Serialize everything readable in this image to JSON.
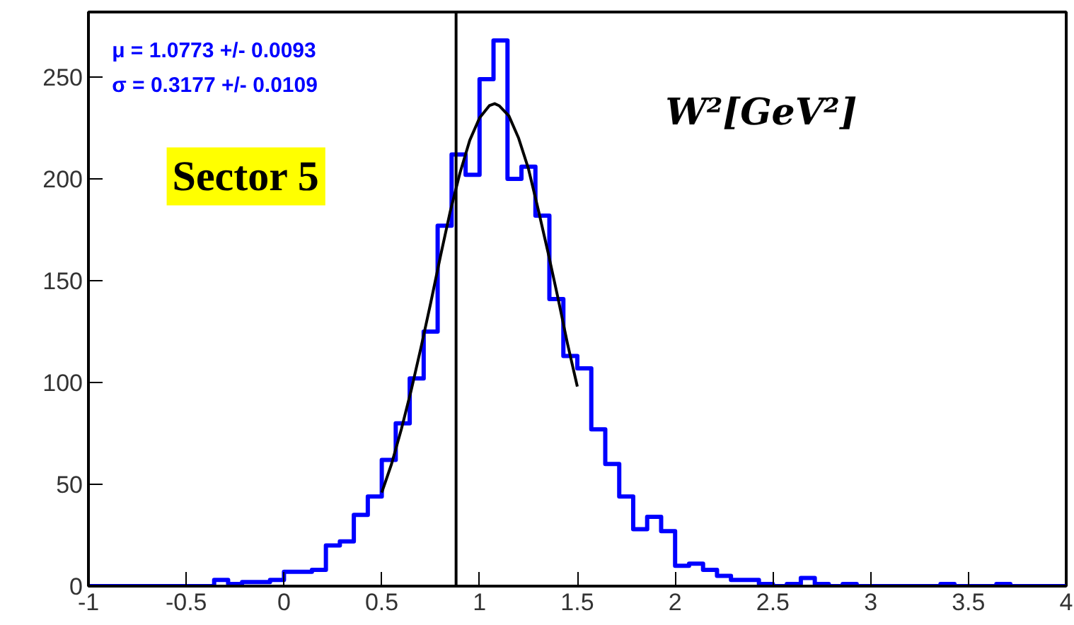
{
  "chart_data": {
    "type": "histogram",
    "annotations": [
      "μ = 1.0773 +/- 0.0093",
      "σ = 0.3177 +/- 0.0109",
      "Sector 5",
      "W²[GeV²]"
    ],
    "xlim": [
      -1,
      4
    ],
    "ylim": [
      0,
      282
    ],
    "xticks": [
      -1,
      -0.5,
      0,
      0.5,
      1,
      1.5,
      2,
      2.5,
      3,
      3.5,
      4
    ],
    "yticks": [
      0,
      50,
      100,
      150,
      200,
      250
    ],
    "grid": false,
    "ref_lines": [
      {
        "axis": "x",
        "value": 0.88,
        "color": "#000000"
      }
    ],
    "series": [
      {
        "color": "#0000ff",
        "bins": [
          -1,
          -0.9286,
          -0.8571,
          -0.7857,
          -0.7143,
          -0.6429,
          -0.5714,
          -0.5,
          -0.4286,
          -0.3571,
          -0.2857,
          -0.2143,
          -0.1429,
          -0.0714,
          0,
          0.0714,
          0.1429,
          0.2143,
          0.2857,
          0.3571,
          0.4286,
          0.5,
          0.5714,
          0.6429,
          0.7143,
          0.7857,
          0.8571,
          0.9286,
          1,
          1.0714,
          1.1429,
          1.2143,
          1.2857,
          1.3571,
          1.4286,
          1.5,
          1.5714,
          1.6429,
          1.7143,
          1.7857,
          1.8571,
          1.9286,
          2,
          2.0714,
          2.1429,
          2.2143,
          2.2857,
          2.3571,
          2.4286,
          2.5,
          2.5714,
          2.6429,
          2.7143,
          2.7857,
          2.8571,
          2.9286,
          3,
          3.0714,
          3.1429,
          3.2143,
          3.2857,
          3.3571,
          3.4286,
          3.5,
          3.5714,
          3.6429,
          3.7143,
          3.7857,
          3.8571,
          3.9286,
          4
        ],
        "values": [
          0,
          0,
          0,
          0,
          0,
          0,
          0,
          0,
          0,
          3,
          1,
          2,
          2,
          3,
          7,
          7,
          8,
          20,
          22,
          35,
          44,
          62,
          80,
          102,
          125,
          177,
          212,
          202,
          249,
          268,
          200,
          206,
          182,
          141,
          113,
          107,
          77,
          60,
          44,
          28,
          34,
          27,
          10,
          11,
          8,
          5,
          3,
          3,
          1,
          0,
          1,
          4,
          1,
          0,
          1,
          0,
          0,
          0,
          0,
          0,
          0,
          1,
          0,
          0,
          0,
          1,
          0,
          0,
          0,
          0
        ]
      },
      {
        "type": "line",
        "color": "#000000",
        "x": [
          0.5,
          0.55,
          0.6,
          0.65,
          0.7,
          0.75,
          0.8,
          0.85,
          0.9,
          0.95,
          1.0,
          1.05,
          1.0773,
          1.1,
          1.15,
          1.2,
          1.25,
          1.3,
          1.35,
          1.4,
          1.45,
          1.5
        ],
        "values": [
          46,
          60,
          77,
          96,
          117,
          139,
          162,
          184,
          203,
          219,
          230,
          236,
          237,
          236,
          231,
          220,
          205,
          185,
          164,
          142,
          119,
          98
        ]
      }
    ]
  }
}
